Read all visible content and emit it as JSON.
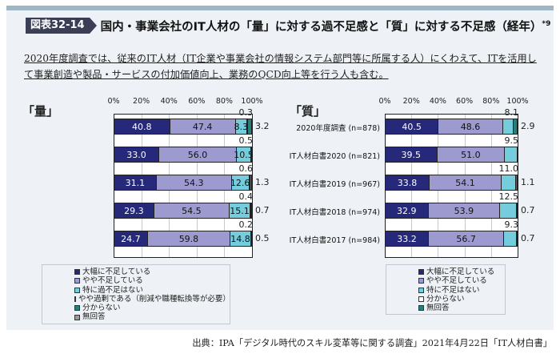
{
  "header": {
    "figure_id": "図表32-14",
    "title": "国内・事業会社のIT人材の「量」に対する過不足感と「質」に対する不足感（経年）",
    "footnote_mark": "*9"
  },
  "note": "2020年度調査では、従来のIT人材（IT企業や事業会社の情報システム部門等に所属する人）にくわえて、ITを活用して事業創造や製品・サービスの付加価値向上、業務のQCD向上等を行う人も含む。",
  "source": "出典：IPA「デジタル時代のスキル変革等に関する調査」2021年4月22日「IT人材白書」",
  "colors": {
    "大幅に不足している": "#26287a",
    "やや不足している": "#9d9ad0",
    "特に過不足はない": "#74ccdc",
    "やや過剰である": "#ffffff",
    "分からない": "#23807a",
    "無回答": "#9a9a9a"
  },
  "charts": {
    "left": {
      "label": "「量」",
      "ticks": [
        "0%",
        "20%",
        "40%",
        "60%",
        "80%",
        "100%"
      ],
      "rows": [
        {
          "label": "2020年度調査 (n=878)",
          "v0": "40.8",
          "v1": "47.4",
          "v2": "8.3",
          "above": "0.3",
          "outside": "3.2"
        },
        {
          "label": "IT人材白書2020 (n=821)",
          "v0": "33.0",
          "v1": "56.0",
          "v2": "10.5",
          "above": "0.5",
          "outside": ""
        },
        {
          "label": "IT人材白書2019 (n=967)",
          "v0": "31.1",
          "v1": "54.3",
          "v2": "12.6",
          "above": "0.6",
          "outside": "1.3"
        },
        {
          "label": "IT人材白書2018 (n=974)",
          "v0": "29.3",
          "v1": "54.5",
          "v2": "15.1",
          "above": "0.4",
          "outside": "0.7"
        },
        {
          "label": "IT人材白書2017 (n=984)",
          "v0": "24.7",
          "v1": "59.8",
          "v2": "14.8",
          "above": "0.2",
          "outside": "0.5"
        }
      ],
      "legend": [
        "大幅に不足している",
        "やや不足している",
        "特に過不足はない",
        "やや過剰である（削減や職種転換等が必要）",
        "分からない",
        "無回答"
      ]
    },
    "right": {
      "label": "「質」",
      "ticks": [
        "0%",
        "20%",
        "40%",
        "60%",
        "80%",
        "100%"
      ],
      "rows": [
        {
          "label": "2020年度調査 (n=878)",
          "v0": "40.5",
          "v1": "48.6",
          "above": "8.1",
          "outside": "2.9"
        },
        {
          "label": "IT人材白書2020 (n=821)",
          "v0": "39.5",
          "v1": "51.0",
          "above": "9.5",
          "outside": ""
        },
        {
          "label": "IT人材白書2019 (n=967)",
          "v0": "33.8",
          "v1": "54.1",
          "above": "11.0",
          "outside": "1.1"
        },
        {
          "label": "IT人材白書2018 (n=974)",
          "v0": "32.9",
          "v1": "53.9",
          "above": "12.5",
          "outside": "0.7"
        },
        {
          "label": "IT人材白書2017 (n=984)",
          "v0": "33.2",
          "v1": "56.7",
          "above": "9.3",
          "outside": "0.7"
        }
      ],
      "legend": [
        "大幅に不足している",
        "やや不足している",
        "特に不足はない",
        "分からない",
        "無回答"
      ]
    }
  },
  "chart_data": [
    {
      "type": "bar",
      "orientation": "horizontal",
      "stacked": true,
      "title": "「量」",
      "xlabel": "",
      "ylabel": "",
      "xlim": [
        0,
        100
      ],
      "x_ticks": [
        "0%",
        "20%",
        "40%",
        "60%",
        "80%",
        "100%"
      ],
      "grid": true,
      "legend_position": "bottom",
      "categories": [
        "2020年度調査 (n=878)",
        "IT人材白書2020 (n=821)",
        "IT人材白書2019 (n=967)",
        "IT人材白書2018 (n=974)",
        "IT人材白書2017 (n=984)"
      ],
      "series": [
        {
          "name": "大幅に不足している",
          "values": [
            40.8,
            33.0,
            31.1,
            29.3,
            24.7
          ]
        },
        {
          "name": "やや不足している",
          "values": [
            47.4,
            56.0,
            54.3,
            54.5,
            59.8
          ]
        },
        {
          "name": "特に過不足はない",
          "values": [
            8.3,
            10.5,
            12.6,
            15.1,
            14.8
          ]
        },
        {
          "name": "やや過剰である（削減や職種転換等が必要）",
          "values": [
            0.3,
            0.5,
            0.6,
            0.4,
            0.2
          ]
        },
        {
          "name": "分からない",
          "values": [
            3.2,
            null,
            1.3,
            0.7,
            0.5
          ]
        },
        {
          "name": "無回答",
          "values": [
            null,
            null,
            null,
            null,
            null
          ]
        }
      ]
    },
    {
      "type": "bar",
      "orientation": "horizontal",
      "stacked": true,
      "title": "「質」",
      "xlabel": "",
      "ylabel": "",
      "xlim": [
        0,
        100
      ],
      "x_ticks": [
        "0%",
        "20%",
        "40%",
        "60%",
        "80%",
        "100%"
      ],
      "grid": true,
      "legend_position": "bottom",
      "categories": [
        "2020年度調査 (n=878)",
        "IT人材白書2020 (n=821)",
        "IT人材白書2019 (n=967)",
        "IT人材白書2018 (n=974)",
        "IT人材白書2017 (n=984)"
      ],
      "series": [
        {
          "name": "大幅に不足している",
          "values": [
            40.5,
            39.5,
            33.8,
            32.9,
            33.2
          ]
        },
        {
          "name": "やや不足している",
          "values": [
            48.6,
            51.0,
            54.1,
            53.9,
            56.7
          ]
        },
        {
          "name": "特に不足はない",
          "values": [
            8.1,
            9.5,
            11.0,
            12.5,
            9.3
          ]
        },
        {
          "name": "分からない",
          "values": [
            2.9,
            null,
            1.1,
            0.7,
            0.7
          ]
        },
        {
          "name": "無回答",
          "values": [
            null,
            null,
            null,
            null,
            null
          ]
        }
      ]
    }
  ]
}
